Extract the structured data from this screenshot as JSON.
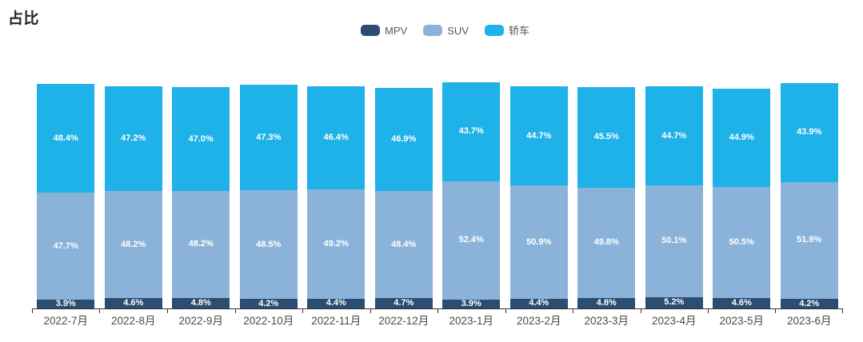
{
  "title": "占比",
  "legend": {
    "items": [
      "MPV",
      "SUV",
      "轿车"
    ]
  },
  "chart_data": {
    "type": "bar",
    "stacked": true,
    "title": "占比",
    "value_unit": "%",
    "label_format": "{value}%",
    "legend_position": "top-center",
    "grid": false,
    "y_axis_visible": false,
    "categories": [
      "2022-7月",
      "2022-8月",
      "2022-9月",
      "2022-10月",
      "2022-11月",
      "2022-12月",
      "2023-1月",
      "2023-2月",
      "2023-3月",
      "2023-4月",
      "2023-5月",
      "2023-6月"
    ],
    "series": [
      {
        "name": "MPV",
        "color": "#2b4d71",
        "values": [
          3.9,
          4.6,
          4.8,
          4.2,
          4.4,
          4.7,
          3.9,
          4.4,
          4.8,
          5.2,
          4.6,
          4.2
        ]
      },
      {
        "name": "SUV",
        "color": "#8bb3d9",
        "values": [
          47.7,
          48.2,
          48.2,
          48.5,
          49.2,
          48.4,
          52.4,
          50.9,
          49.8,
          50.1,
          50.5,
          51.9
        ]
      },
      {
        "name": "轿车",
        "color": "#1eb2e8",
        "values": [
          48.4,
          47.2,
          47.0,
          47.3,
          46.4,
          46.9,
          43.7,
          44.7,
          45.5,
          44.7,
          44.9,
          43.9
        ]
      }
    ],
    "relative_bar_totals": [
      0.993,
      0.982,
      0.979,
      0.989,
      0.982,
      0.975,
      1.0,
      0.982,
      0.979,
      0.982,
      0.972,
      0.996
    ]
  }
}
